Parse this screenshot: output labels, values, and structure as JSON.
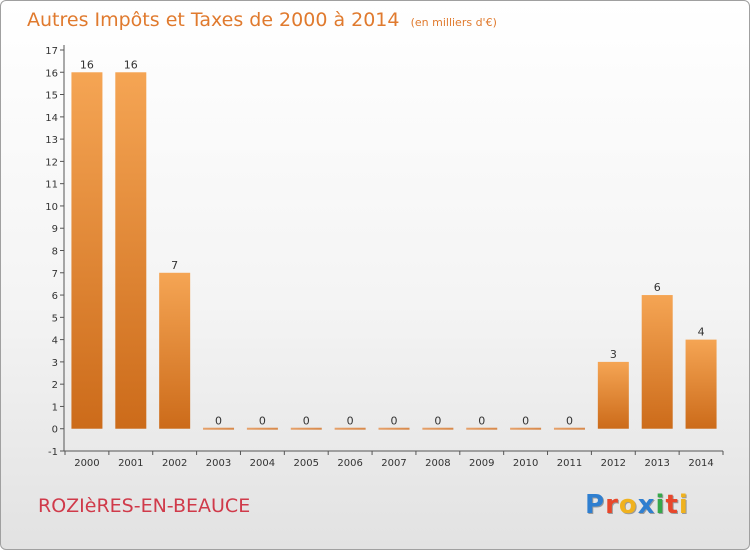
{
  "header": {
    "title": "Autres Impôts et Taxes de 2000 à 2014",
    "subtitle": "(en milliers d'€)"
  },
  "footer": {
    "commune": "ROZIèRES-EN-BEAUCE",
    "brand": [
      {
        "ch": "P",
        "color": "#2f7fd0"
      },
      {
        "ch": "r",
        "color": "#e8472b"
      },
      {
        "ch": "o",
        "color": "#f0b21e"
      },
      {
        "ch": "x",
        "color": "#2f7fd0"
      },
      {
        "ch": "i",
        "color": "#37a84a"
      },
      {
        "ch": "t",
        "color": "#e8472b"
      },
      {
        "ch": "i",
        "color": "#f0b21e"
      }
    ]
  },
  "chart_data": {
    "type": "bar",
    "title": "Autres Impôts et Taxes de 2000 à 2014",
    "subtitle": "(en milliers d'€)",
    "xlabel": "",
    "ylabel": "",
    "categories": [
      "2000",
      "2001",
      "2002",
      "2003",
      "2004",
      "2005",
      "2006",
      "2007",
      "2008",
      "2009",
      "2010",
      "2011",
      "2012",
      "2013",
      "2014"
    ],
    "values": [
      16,
      16,
      7,
      0,
      0,
      0,
      0,
      0,
      0,
      0,
      0,
      0,
      3,
      6,
      4
    ],
    "ylim": [
      -1,
      17
    ],
    "yticks": [
      "-1",
      "0",
      "1",
      "2",
      "3",
      "4",
      "5",
      "6",
      "7",
      "8",
      "9",
      "10",
      "11",
      "12",
      "13",
      "14",
      "15",
      "16",
      "17"
    ],
    "grid": false,
    "legend": "none",
    "bar_color": "#e8862f"
  }
}
